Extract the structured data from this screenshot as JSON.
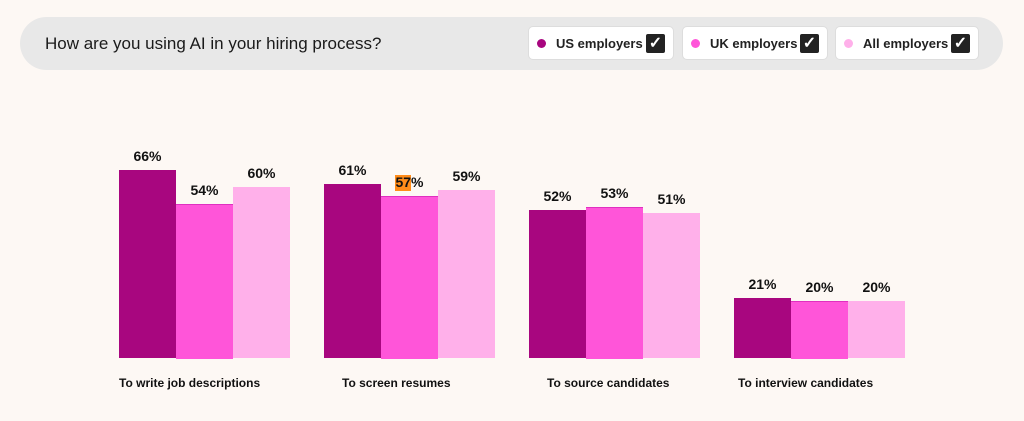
{
  "header": {
    "title": "How are you using AI in your hiring process?"
  },
  "chart_data": {
    "type": "bar",
    "title": "How are you using AI in your hiring process?",
    "categories": [
      "To write job descriptions",
      "To screen resumes",
      "To source candidates",
      "To interview candidates"
    ],
    "series": [
      {
        "name": "US employers",
        "color": "#a8067f",
        "checked": true,
        "values": [
          66,
          61,
          52,
          21
        ],
        "labels": [
          "66%",
          "61%",
          "52%",
          "21%"
        ]
      },
      {
        "name": "UK employers",
        "color": "#ff55d9",
        "checked": true,
        "values": [
          54,
          57,
          53,
          20
        ],
        "labels": [
          "54%",
          "57%",
          "53%",
          "20%"
        ]
      },
      {
        "name": "All employers",
        "color": "#ffb0ea",
        "checked": true,
        "values": [
          60,
          59,
          51,
          20
        ],
        "labels": [
          "60%",
          "59%",
          "51%",
          "20%"
        ]
      }
    ],
    "legend": "top-right",
    "grid": false,
    "ylim": [
      0,
      70
    ]
  },
  "icons": {
    "checkbox": "checkmark-icon"
  },
  "checkmark": "✓"
}
